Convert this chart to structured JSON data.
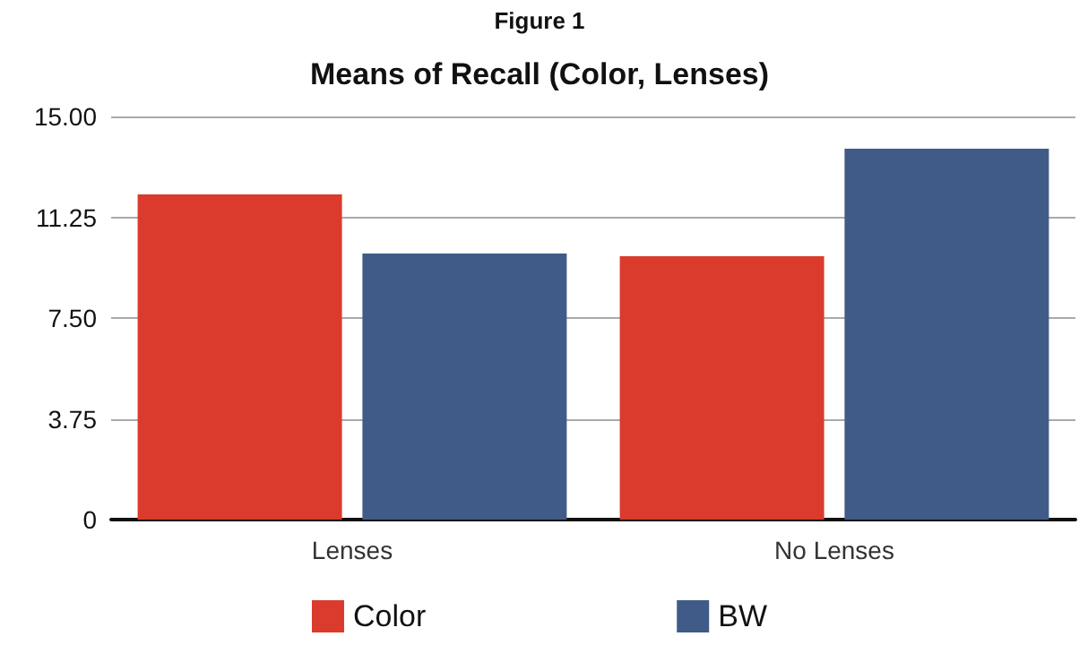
{
  "chart_data": {
    "type": "bar",
    "title": "Figure 1",
    "subtitle": "Means of Recall (Color, Lenses)",
    "categories": [
      "Lenses",
      "No Lenses"
    ],
    "series": [
      {
        "name": "Color",
        "color": "#da3b2d",
        "values": [
          12.1,
          9.8
        ]
      },
      {
        "name": "BW",
        "color": "#415b88",
        "values": [
          9.9,
          13.8
        ]
      }
    ],
    "ylim": [
      0,
      15
    ],
    "yticks": [
      {
        "value": 0,
        "label": "0"
      },
      {
        "value": 3.75,
        "label": "3.75"
      },
      {
        "value": 7.5,
        "label": "7.50"
      },
      {
        "value": 11.25,
        "label": "11.25"
      },
      {
        "value": 15,
        "label": "15.00"
      }
    ],
    "grid": "y",
    "legend": "bottom"
  }
}
